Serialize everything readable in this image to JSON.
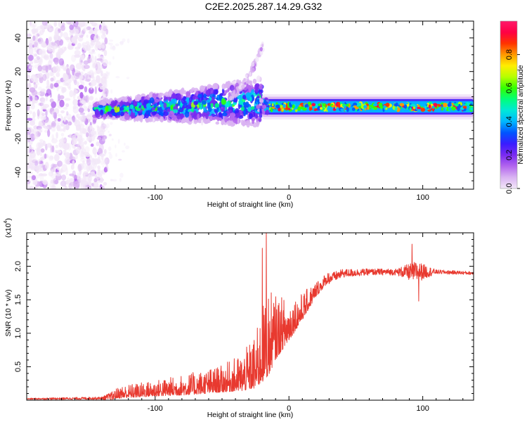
{
  "title": "C2E2.2025.287.14.29.G32",
  "colors": {
    "snr_line": "#e8392f",
    "frame": "#000000",
    "colormap": [
      "#f2e6f8",
      "#d9b3f2",
      "#b366ee",
      "#7a2bf0",
      "#3a1cff",
      "#0055ff",
      "#00b7ff",
      "#00e8d8",
      "#00ff7a",
      "#33ff00",
      "#b6ff00",
      "#ffee00",
      "#ff9900",
      "#ff3300",
      "#ff0044",
      "#ff1a6a"
    ]
  },
  "chart_data": [
    {
      "type": "heatmap",
      "name": "spectrogram",
      "xlabel": "Height of straight line (km)",
      "ylabel": "Frequency (Hz)",
      "xlim": [
        -196,
        138
      ],
      "ylim": [
        -50,
        50
      ],
      "xticks": [
        -100,
        0,
        100
      ],
      "yticks": [
        40,
        20,
        0,
        -20,
        -40
      ],
      "xtick_labels": [
        "-100",
        "0",
        "100"
      ],
      "ytick_labels": [
        "40",
        "20",
        "0",
        "-20",
        "-40"
      ],
      "colorbar": {
        "label": "Normalized spectral amplitude",
        "range": [
          0,
          1
        ],
        "ticks": [
          0.0,
          0.2,
          0.4,
          0.6,
          0.8
        ],
        "tick_labels": [
          "0.0",
          "0.2",
          "0.4",
          "0.6",
          "0.8"
        ]
      },
      "regions": [
        {
          "description": "diffuse low-amplitude noise",
          "x": [
            -196,
            -140
          ],
          "freq": [
            -50,
            50
          ],
          "amplitude": [
            0.0,
            0.15
          ]
        },
        {
          "description": "broadening band",
          "x": [
            -145,
            -20
          ],
          "freq_center": [
            -3,
            2
          ],
          "freq_halfwidth": [
            3,
            10
          ],
          "amplitude": [
            0.15,
            0.6
          ]
        },
        {
          "description": "rising feature",
          "x": [
            -45,
            -18
          ],
          "freq": [
            5,
            38
          ],
          "amplitude": [
            0.05,
            0.15
          ]
        },
        {
          "description": "narrow stable band",
          "x": [
            -20,
            138
          ],
          "freq_center": [
            -3,
            1
          ],
          "freq_halfwidth": [
            2,
            3
          ],
          "amplitude": [
            0.4,
            0.95
          ]
        }
      ]
    },
    {
      "type": "line",
      "name": "snr",
      "xlabel": "Height of straight line (km)",
      "ylabel": "SNR (10 * v/v)",
      "scale_label": "(x10",
      "scale_exponent": "4",
      "xlim": [
        -196,
        138
      ],
      "ylim": [
        0,
        2.5
      ],
      "xticks": [
        -100,
        0,
        100
      ],
      "yticks": [
        0.5,
        1.0,
        1.5,
        2.0
      ],
      "xtick_labels": [
        "-100",
        "0",
        "100"
      ],
      "ytick_labels": [
        "0.5",
        "1.0",
        "1.5",
        "2.0"
      ],
      "profile": {
        "x": [
          -196,
          -140,
          -125,
          -100,
          -75,
          -50,
          -35,
          -25,
          -20,
          -15,
          -10,
          0,
          10,
          20,
          30,
          40,
          60,
          80,
          95,
          100,
          110,
          138
        ],
        "baseline": [
          0.02,
          0.03,
          0.08,
          0.12,
          0.16,
          0.22,
          0.28,
          0.38,
          0.55,
          0.7,
          0.85,
          1.05,
          1.3,
          1.6,
          1.82,
          1.9,
          1.92,
          1.92,
          1.93,
          1.93,
          1.92,
          1.9
        ],
        "amplitude": [
          0.01,
          0.02,
          0.12,
          0.15,
          0.2,
          0.25,
          0.35,
          0.5,
          0.7,
          0.8,
          0.6,
          0.4,
          0.25,
          0.15,
          0.1,
          0.08,
          0.06,
          0.06,
          0.2,
          0.15,
          0.04,
          0.03
        ]
      },
      "features": [
        {
          "x": -17,
          "y": 2.5,
          "note": "peak spike"
        },
        {
          "x": -20,
          "y": 2.27,
          "note": "spike"
        },
        {
          "x": 92,
          "y": 2.33,
          "note": "spike"
        },
        {
          "x": 97,
          "y": 1.48,
          "note": "dip"
        }
      ]
    }
  ]
}
